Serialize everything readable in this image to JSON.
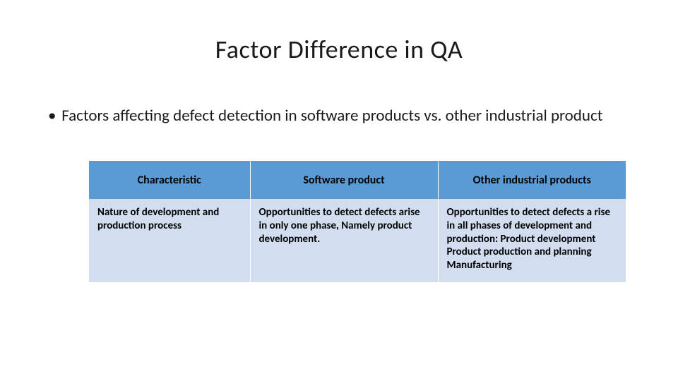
{
  "title": "Factor Difference in QA",
  "bullet": {
    "marker": "•",
    "text": "Factors affecting defect detection in software products vs. other industrial product"
  },
  "table": {
    "headers": [
      "Characteristic",
      "Software product",
      "Other industrial products"
    ],
    "row": {
      "c0": "Nature of development and production process",
      "c1": "Opportunities to detect defects arise in only one phase, Namely product development.",
      "c2": "Opportunities to detect defects a rise in all phases of development and production: Product development Product production and planning Manufacturing"
    },
    "colors": {
      "header_bg": "#5b9bd5",
      "row_bg": "#d2deef",
      "text": "#000000",
      "divider": "#ffffff"
    }
  }
}
